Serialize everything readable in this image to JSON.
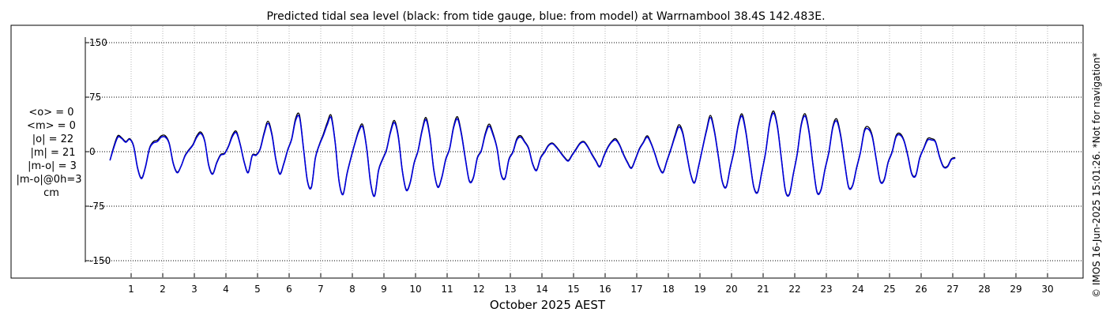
{
  "chart_data": {
    "type": "line",
    "title": "Predicted tidal sea level (black: from tide gauge, blue: from model) at Warrnambool 38.4S 142.483E.",
    "xlabel": "October 2025 AEST",
    "ylabel": "",
    "xlim": [
      0.25,
      31.25
    ],
    "ylim": [
      -160,
      160
    ],
    "y_ticks": [
      150,
      75,
      0,
      -75,
      -150
    ],
    "x_ticks": [
      1,
      2,
      3,
      4,
      5,
      6,
      7,
      8,
      9,
      10,
      11,
      12,
      13,
      14,
      15,
      16,
      17,
      18,
      19,
      20,
      21,
      22,
      23,
      24,
      25,
      26,
      27,
      28,
      29,
      30
    ],
    "grid": true,
    "series": [
      {
        "color": "#000000",
        "time_step_hours": 3,
        "start_day": 0.33,
        "values": [
          -12,
          8,
          22,
          19,
          14,
          18,
          8,
          -22,
          -36,
          -20,
          5,
          14,
          16,
          22,
          22,
          12,
          -15,
          -28,
          -20,
          -5,
          3,
          10,
          22,
          27,
          15,
          -18,
          -30,
          -15,
          -4,
          -2,
          8,
          23,
          28,
          10,
          -14,
          -28,
          -5,
          -4,
          4,
          26,
          42,
          25,
          -10,
          -30,
          -16,
          3,
          18,
          46,
          50,
          5,
          -40,
          -48,
          -8,
          10,
          24,
          40,
          50,
          14,
          -40,
          -58,
          -30,
          -8,
          12,
          30,
          37,
          5,
          -43,
          -60,
          -25,
          -10,
          3,
          28,
          43,
          22,
          -25,
          -52,
          -42,
          -15,
          2,
          30,
          47,
          22,
          -25,
          -48,
          -35,
          -10,
          5,
          35,
          48,
          25,
          -10,
          -40,
          -35,
          -8,
          2,
          25,
          38,
          25,
          5,
          -30,
          -36,
          -10,
          0,
          18,
          22,
          14,
          5,
          -16,
          -25,
          -8,
          0,
          9,
          12,
          7,
          0,
          -7,
          -12,
          -4,
          4,
          12,
          14,
          7,
          -3,
          -12,
          -20,
          -6,
          6,
          14,
          18,
          10,
          -3,
          -14,
          -22,
          -10,
          4,
          13,
          22,
          12,
          -3,
          -20,
          -28,
          -12,
          4,
          22,
          37,
          27,
          -2,
          -30,
          -42,
          -20,
          5,
          30,
          50,
          30,
          -5,
          -40,
          -48,
          -22,
          2,
          36,
          52,
          28,
          -12,
          -48,
          -55,
          -28,
          0,
          40,
          56,
          35,
          -10,
          -53,
          -58,
          -30,
          -2,
          38,
          52,
          28,
          -18,
          -55,
          -52,
          -24,
          0,
          35,
          45,
          23,
          -15,
          -48,
          -46,
          -22,
          0,
          30,
          34,
          22,
          -10,
          -40,
          -38,
          -14,
          0,
          22,
          25,
          16,
          -5,
          -30,
          -32,
          -8,
          5,
          18,
          18,
          14,
          -6,
          -20,
          -20,
          -10,
          -8
        ]
      },
      {
        "color": "#0000dd",
        "time_step_hours": 3,
        "start_day": 0.33,
        "values": [
          -12,
          6,
          20,
          18,
          13,
          17,
          7,
          -23,
          -37,
          -21,
          4,
          12,
          14,
          20,
          20,
          11,
          -16,
          -29,
          -20,
          -6,
          2,
          9,
          20,
          25,
          14,
          -19,
          -31,
          -16,
          -5,
          -3,
          7,
          21,
          26,
          9,
          -15,
          -29,
          -6,
          -5,
          3,
          24,
          39,
          23,
          -11,
          -31,
          -17,
          2,
          17,
          43,
          47,
          4,
          -41,
          -49,
          -9,
          9,
          22,
          37,
          47,
          13,
          -41,
          -59,
          -31,
          -9,
          11,
          28,
          34,
          4,
          -44,
          -61,
          -26,
          -11,
          2,
          26,
          40,
          20,
          -26,
          -53,
          -43,
          -16,
          1,
          28,
          44,
          20,
          -26,
          -49,
          -36,
          -11,
          4,
          33,
          45,
          23,
          -11,
          -41,
          -36,
          -9,
          1,
          23,
          35,
          23,
          4,
          -31,
          -37,
          -11,
          -1,
          16,
          20,
          13,
          4,
          -17,
          -26,
          -9,
          -1,
          8,
          11,
          6,
          -1,
          -8,
          -13,
          -5,
          3,
          11,
          13,
          6,
          -4,
          -13,
          -21,
          -7,
          5,
          13,
          16,
          9,
          -4,
          -15,
          -23,
          -11,
          3,
          12,
          20,
          11,
          -4,
          -21,
          -29,
          -13,
          3,
          20,
          34,
          25,
          -3,
          -31,
          -43,
          -21,
          4,
          28,
          47,
          28,
          -6,
          -41,
          -49,
          -23,
          1,
          34,
          49,
          26,
          -13,
          -49,
          -56,
          -29,
          -1,
          38,
          53,
          33,
          -11,
          -54,
          -59,
          -31,
          -3,
          36,
          49,
          26,
          -19,
          -56,
          -53,
          -25,
          -1,
          33,
          42,
          21,
          -16,
          -49,
          -47,
          -23,
          -1,
          28,
          31,
          20,
          -11,
          -41,
          -39,
          -15,
          -1,
          20,
          23,
          15,
          -6,
          -31,
          -33,
          -9,
          4,
          16,
          16,
          13,
          -7,
          -21,
          -21,
          -11,
          -9
        ]
      }
    ],
    "stats": [
      "<o> = 0",
      "<m> = 0",
      "|o| = 22",
      "|m| = 21",
      "|m-o| = 3",
      "|m-o|@0h=3",
      "cm"
    ],
    "credit": "© IMOS 16-Jun-2025 15:01:26. *Not for navigation*"
  }
}
